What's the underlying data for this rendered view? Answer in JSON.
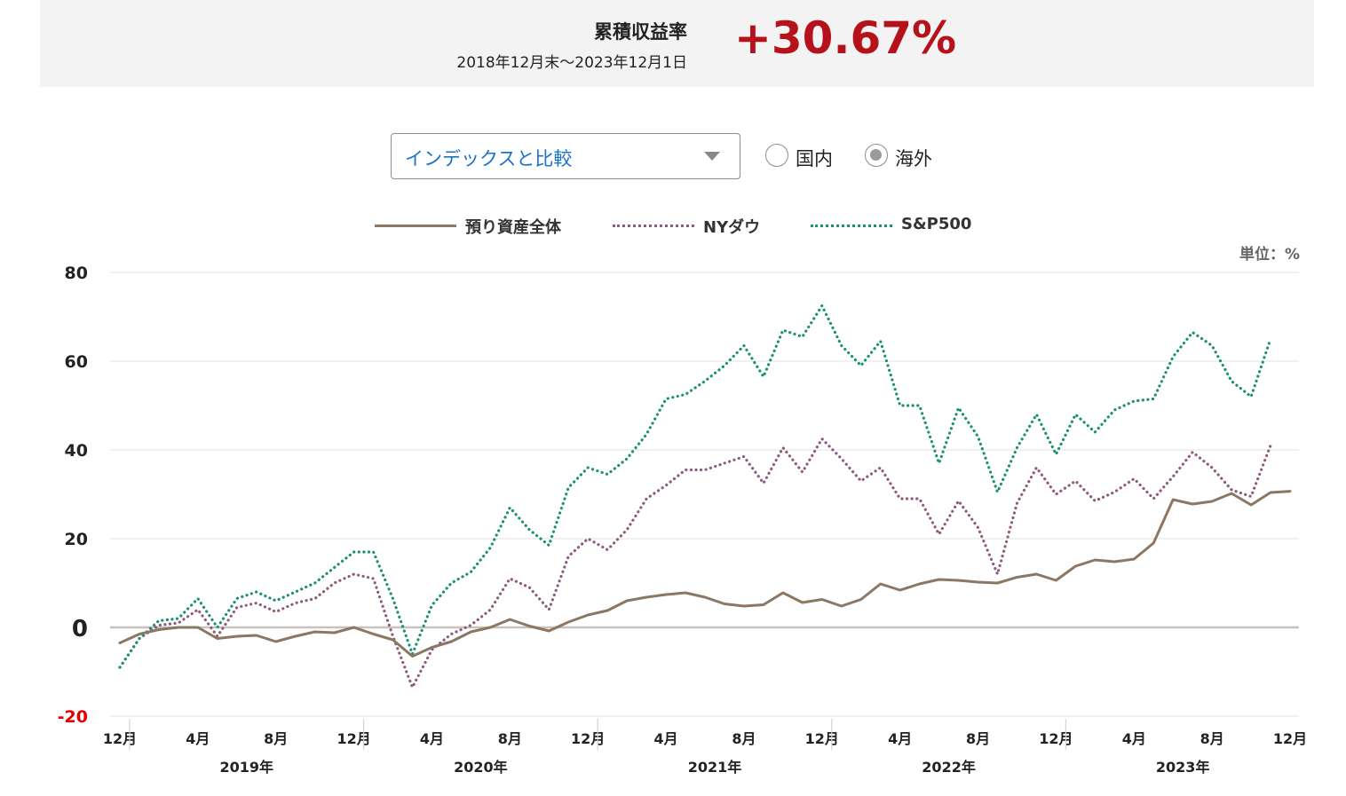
{
  "summary": {
    "title": "累積収益率",
    "period": "2018年12月末〜2023年12月1日",
    "value": "+30.67%"
  },
  "controls": {
    "select_value": "インデックスと比較",
    "radio_domestic": "国内",
    "radio_overseas": "海外",
    "selected_radio": "海外"
  },
  "unit_label": "単位：%",
  "colors": {
    "total": "#8b7763",
    "nydow": "#8e5a7e",
    "sp500": "#1a9170",
    "negative_tick": "#e00000",
    "summary_value": "#b5121b"
  },
  "chart_data": {
    "type": "line",
    "ylim": [
      -20,
      80
    ],
    "yticks": [
      "80",
      "60",
      "40",
      "20",
      "0",
      "-20"
    ],
    "x_month_labels": [
      "12月",
      "4月",
      "8月",
      "12月",
      "4月",
      "8月",
      "12月",
      "4月",
      "8月",
      "12月",
      "4月",
      "8月",
      "12月",
      "4月",
      "8月",
      "12月"
    ],
    "x_year_labels": [
      "2019年",
      "2020年",
      "2021年",
      "2022年",
      "2023年"
    ],
    "x_start": "2018-12",
    "x_end": "2023-12",
    "grid": true,
    "legend_position": "top",
    "series": [
      {
        "name": "預り資産全体",
        "style": "solid",
        "values": [
          -3.5,
          -1.5,
          -0.5,
          0,
          0,
          -2.5,
          -2,
          -1.8,
          -3.2,
          -2,
          -1,
          -1.2,
          0,
          -1.5,
          -2.8,
          -6.5,
          -4.5,
          -3.2,
          -1,
          0,
          1.8,
          0.3,
          -0.8,
          1.2,
          2.8,
          3.8,
          6,
          6.8,
          7.4,
          7.8,
          6.8,
          5.3,
          4.8,
          5.1,
          7.8,
          5.6,
          6.3,
          4.8,
          6.3,
          9.8,
          8.4,
          9.8,
          10.8,
          10.6,
          10.2,
          10,
          11.3,
          12,
          10.6,
          13.8,
          15.2,
          14.8,
          15.4,
          19,
          28.8,
          27.8,
          28.4,
          30.2,
          27.6,
          30.4,
          30.67
        ]
      },
      {
        "name": "NYダウ",
        "style": "dotted",
        "values": [
          -9,
          -2.5,
          0.5,
          1,
          4,
          -2,
          4.5,
          5.5,
          3.5,
          5.5,
          6.5,
          10,
          12,
          11,
          -2,
          -13.5,
          -5,
          -1.5,
          0.5,
          4,
          11,
          9,
          4,
          16,
          20,
          17.5,
          22,
          29,
          32,
          35.5,
          35.5,
          37,
          38.5,
          32.5,
          40.5,
          35,
          42.5,
          38,
          33,
          36,
          29,
          29,
          21,
          28.5,
          22.5,
          12,
          28,
          36,
          30,
          33,
          28.5,
          30.5,
          33.5,
          29,
          34,
          39.5,
          36,
          31,
          29.5,
          41
        ]
      },
      {
        "name": "S&P500",
        "style": "dotted",
        "values": [
          -9,
          -2.5,
          1.5,
          2,
          6.5,
          0,
          6.5,
          8,
          6,
          8,
          10,
          13.5,
          17,
          17,
          6.5,
          -6,
          5,
          10,
          12.5,
          18,
          27,
          22,
          18.5,
          31.5,
          36,
          34.5,
          38,
          43.5,
          51.5,
          52.5,
          55.5,
          59,
          63.5,
          56.5,
          67,
          65.5,
          72.5,
          63.5,
          59,
          64.5,
          50,
          50,
          37,
          49.5,
          43,
          30.5,
          40.5,
          48,
          39,
          48,
          44,
          49,
          51,
          51.5,
          61,
          66.5,
          63.5,
          55.5,
          52,
          65
        ]
      }
    ]
  }
}
